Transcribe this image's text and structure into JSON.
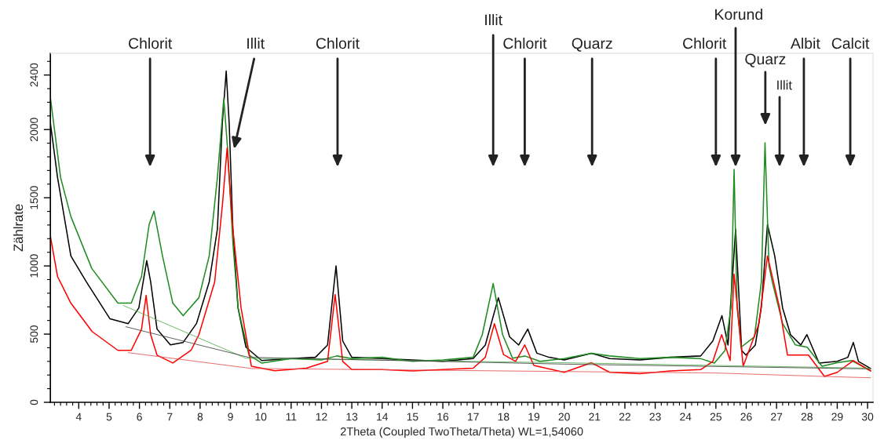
{
  "chart_data": {
    "type": "line",
    "xlabel": "2Theta (Coupled TwoTheta/Theta) WL=1,54060",
    "ylabel": "Zählrate",
    "xlim": [
      3.065,
      30.18
    ],
    "ylim": [
      0,
      2560
    ],
    "xticks": [
      4,
      5,
      6,
      7,
      8,
      9,
      10,
      11,
      12,
      13,
      14,
      15,
      16,
      17,
      18,
      19,
      20,
      21,
      22,
      23,
      24,
      25,
      26,
      27,
      28,
      29,
      30
    ],
    "yticks": [
      0,
      500,
      1000,
      1500,
      2000,
      2400
    ],
    "annotations": [
      "Chlorit",
      "Illit",
      "Chlorit",
      "Illit",
      "Chlorit",
      "Quarz",
      "Chlorit",
      "Korund",
      "Quarz",
      "Illit",
      "Albit",
      "Calcit"
    ],
    "series": [
      {
        "color": "#000000",
        "x": [
          3.07,
          3.3,
          3.74,
          4.25,
          5.03,
          5.63,
          5.98,
          6.24,
          6.37,
          6.58,
          7.02,
          7.44,
          7.88,
          8.3,
          8.57,
          8.73,
          8.86,
          8.96,
          9.08,
          9.25,
          9.51,
          10.03,
          11.0,
          11.8,
          12.2,
          12.48,
          12.7,
          13.0,
          14.0,
          15.0,
          16.0,
          17.0,
          17.4,
          17.83,
          18.2,
          18.5,
          18.8,
          19.1,
          19.5,
          20.0,
          20.9,
          21.5,
          22.5,
          23.5,
          24.5,
          24.9,
          25.2,
          25.4,
          25.65,
          25.85,
          25.99,
          26.3,
          26.5,
          26.7,
          26.94,
          27.2,
          27.46,
          27.8,
          28.0,
          28.4,
          29.0,
          29.35,
          29.53,
          29.7,
          30.1
        ],
        "values": [
          2040,
          1650,
          1073,
          883,
          612,
          577,
          692,
          1039,
          883,
          537,
          421,
          439,
          577,
          883,
          1270,
          2037,
          2430,
          2037,
          1270,
          692,
          404,
          306,
          320,
          330,
          420,
          1000,
          450,
          330,
          320,
          310,
          300,
          320,
          420,
          767,
          480,
          420,
          537,
          360,
          330,
          310,
          360,
          320,
          310,
          330,
          340,
          450,
          635,
          420,
          1270,
          380,
          346,
          420,
          700,
          1304,
          1073,
          692,
          496,
          420,
          496,
          288,
          300,
          330,
          439,
          300,
          248
        ]
      },
      {
        "color": "#1e8c1e",
        "x": [
          3.07,
          3.4,
          3.74,
          4.43,
          5.29,
          5.73,
          6.07,
          6.32,
          6.48,
          6.76,
          7.1,
          7.44,
          7.96,
          8.3,
          8.57,
          8.78,
          8.91,
          9.08,
          9.25,
          9.61,
          10.03,
          11.0,
          12.0,
          12.5,
          13.0,
          14.0,
          15.0,
          16.0,
          17.0,
          17.3,
          17.66,
          17.97,
          18.3,
          18.7,
          19.2,
          20.0,
          20.9,
          21.5,
          22.5,
          23.5,
          24.5,
          24.95,
          25.3,
          25.5,
          25.6,
          25.7,
          25.83,
          26.27,
          26.5,
          26.62,
          26.75,
          26.86,
          27.2,
          27.62,
          28.01,
          28.5,
          29.0,
          29.48,
          30.1
        ],
        "values": [
          2227,
          1650,
          1362,
          981,
          727,
          727,
          923,
          1304,
          1402,
          1073,
          727,
          635,
          767,
          1073,
          1650,
          2227,
          1846,
          1171,
          692,
          346,
          288,
          320,
          310,
          340,
          320,
          330,
          300,
          310,
          330,
          496,
          871,
          496,
          323,
          340,
          300,
          320,
          360,
          340,
          320,
          330,
          320,
          288,
          380,
          700,
          1708,
          700,
          404,
          479,
          883,
          1904,
          1000,
          883,
          577,
          421,
          404,
          265,
          290,
          306,
          231
        ]
      },
      {
        "color": "#ff0000",
        "x": [
          3.07,
          3.3,
          3.74,
          4.44,
          5.29,
          5.73,
          6.07,
          6.22,
          6.37,
          6.58,
          7.1,
          7.7,
          7.96,
          8.48,
          8.74,
          8.89,
          9.08,
          9.35,
          9.69,
          10.46,
          11.5,
          12.2,
          12.45,
          12.7,
          13.0,
          14.0,
          15.0,
          16.0,
          17.0,
          17.4,
          17.7,
          18.0,
          18.4,
          18.7,
          19.0,
          20.0,
          20.9,
          21.5,
          22.5,
          23.5,
          24.5,
          24.9,
          25.19,
          25.47,
          25.6,
          25.9,
          26.42,
          26.7,
          27.1,
          27.36,
          28.05,
          28.58,
          29.0,
          29.53,
          30.1
        ],
        "values": [
          1212,
          923,
          727,
          519,
          381,
          381,
          537,
          785,
          496,
          346,
          288,
          381,
          496,
          883,
          1460,
          1864,
          1270,
          692,
          265,
          231,
          250,
          300,
          790,
          300,
          240,
          240,
          230,
          240,
          250,
          330,
          577,
          350,
          300,
          421,
          270,
          220,
          290,
          220,
          210,
          230,
          240,
          300,
          496,
          306,
          940,
          265,
          577,
          1073,
          692,
          346,
          346,
          190,
          220,
          306,
          230
        ]
      },
      {
        "color": "#4caf4c",
        "x": [
          5.47,
          9.51,
          20.0,
          30.1
        ],
        "values": [
          710,
          323,
          290,
          250
        ]
      },
      {
        "color": "#404040",
        "x": [
          5.55,
          9.6,
          20.0,
          30.1
        ],
        "values": [
          554,
          330,
          280,
          245
        ]
      },
      {
        "color": "#e05050",
        "x": [
          5.63,
          9.69,
          25.0,
          28.5,
          30.1
        ],
        "values": [
          364,
          248,
          215,
          190,
          180
        ]
      }
    ]
  }
}
